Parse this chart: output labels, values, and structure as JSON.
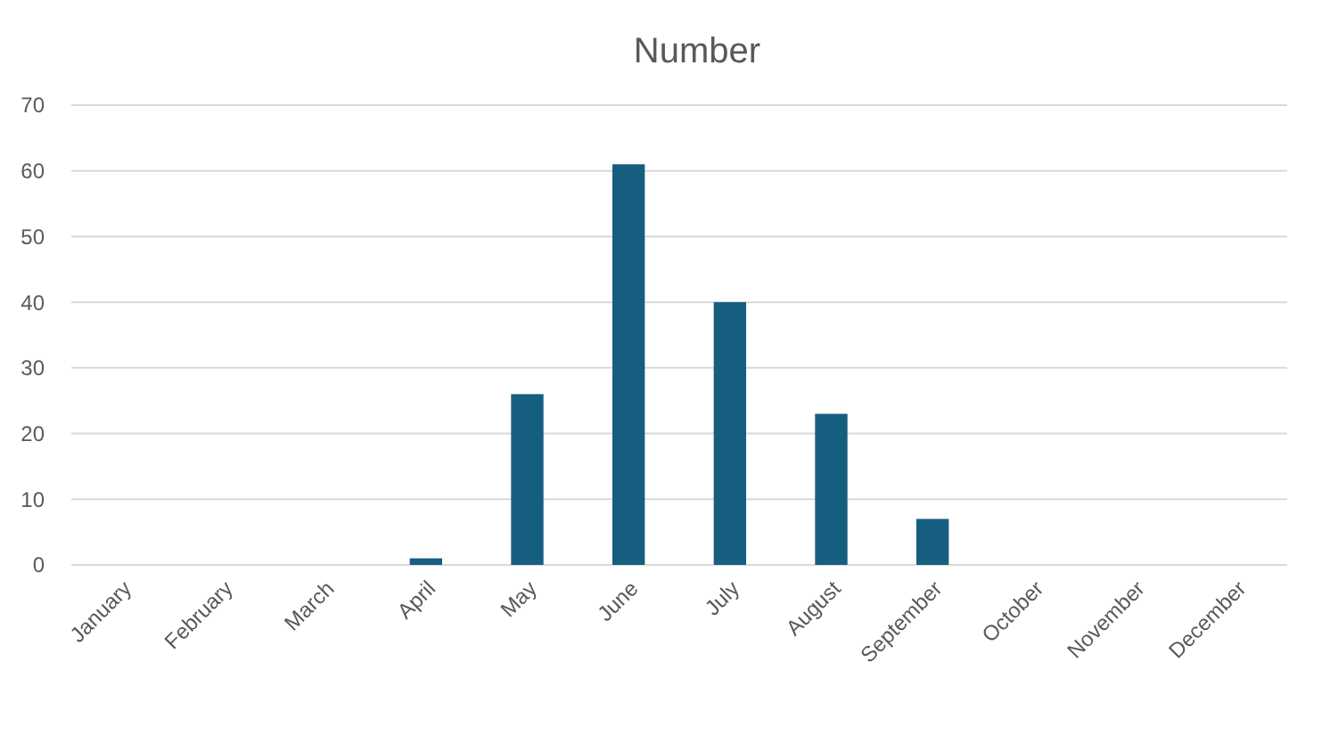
{
  "chart_data": {
    "type": "bar",
    "title": "Number",
    "categories": [
      "January",
      "February",
      "March",
      "April",
      "May",
      "June",
      "July",
      "August",
      "September",
      "October",
      "November",
      "December"
    ],
    "values": [
      0,
      0,
      0,
      1,
      26,
      61,
      40,
      23,
      7,
      0,
      0,
      0
    ],
    "color": "#165e80",
    "ylim": [
      0,
      70
    ],
    "yticks": [
      0,
      10,
      20,
      30,
      40,
      50,
      60,
      70
    ],
    "grid": "y"
  }
}
